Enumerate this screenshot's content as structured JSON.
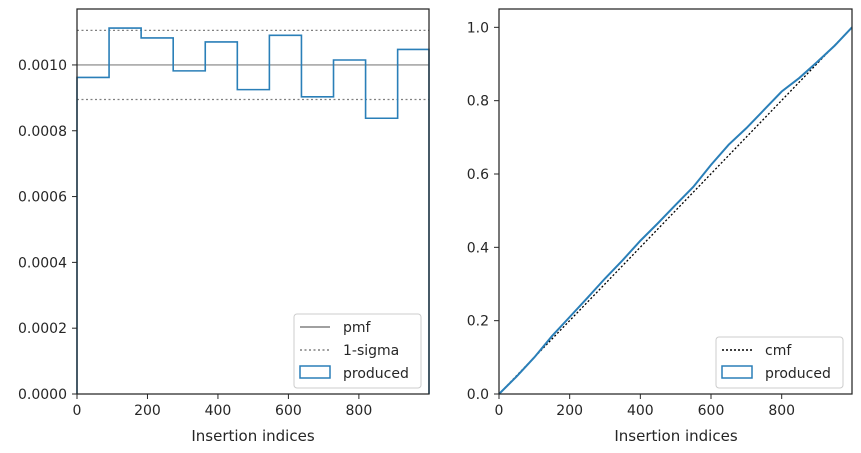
{
  "chart_data": [
    {
      "type": "line",
      "xlabel": "Insertion indices",
      "ylabel": "",
      "xlim": [
        0,
        999
      ],
      "ylim": [
        0,
        0.00117
      ],
      "grid": false,
      "legend_position": "bottom-right",
      "x_ticks": [
        0,
        200,
        400,
        600,
        800
      ],
      "x_tick_labels": [
        "0",
        "200",
        "400",
        "600",
        "800"
      ],
      "y_ticks": [
        0,
        0.0002,
        0.0004,
        0.0006,
        0.0008,
        0.001
      ],
      "y_tick_labels": [
        "0.0000",
        "0.0002",
        "0.0004",
        "0.0006",
        "0.0008",
        "0.0010"
      ],
      "reference_lines": [
        {
          "name": "pmf",
          "y": 0.001,
          "style": "solid",
          "color": "#808080"
        },
        {
          "name": "1-sigma",
          "y": 0.001105,
          "style": "dotted",
          "color": "#808080"
        },
        {
          "name": "1-sigma",
          "y": 0.000895,
          "style": "dotted",
          "color": "#808080"
        }
      ],
      "series": [
        {
          "name": "produced",
          "kind": "step-histogram",
          "color": "#2a7fb8",
          "bin_edges": [
            0,
            91,
            182,
            273,
            364,
            455,
            546,
            637,
            728,
            819,
            910,
            999
          ],
          "values": [
            0.000962,
            0.001112,
            0.001082,
            0.000982,
            0.00107,
            0.000925,
            0.00109,
            0.000903,
            0.001015,
            0.000838,
            0.001047
          ]
        }
      ],
      "legend": [
        {
          "label": "pmf",
          "kind": "solid",
          "color": "#808080"
        },
        {
          "label": "1-sigma",
          "kind": "dotted",
          "color": "#808080"
        },
        {
          "label": "produced",
          "kind": "patch",
          "color": "#2a7fb8"
        }
      ]
    },
    {
      "type": "line",
      "xlabel": "Insertion indices",
      "ylabel": "",
      "xlim": [
        0,
        999
      ],
      "ylim": [
        0,
        1.05
      ],
      "grid": false,
      "legend_position": "bottom-right",
      "x_ticks": [
        0,
        200,
        400,
        600,
        800
      ],
      "x_tick_labels": [
        "0",
        "200",
        "400",
        "600",
        "800"
      ],
      "y_ticks": [
        0,
        0.2,
        0.4,
        0.6,
        0.8,
        1.0
      ],
      "y_tick_labels": [
        "0.0",
        "0.2",
        "0.4",
        "0.6",
        "0.8",
        "1.0"
      ],
      "series": [
        {
          "name": "cmf",
          "style": "dotted",
          "color": "#000000",
          "x": [
            0,
            999
          ],
          "y": [
            0,
            1.0
          ]
        },
        {
          "name": "produced",
          "style": "solid",
          "color": "#2a7fb8",
          "x": [
            0,
            50,
            100,
            150,
            200,
            250,
            300,
            350,
            400,
            450,
            500,
            550,
            600,
            650,
            700,
            750,
            800,
            850,
            900,
            950,
            999
          ],
          "y": [
            0,
            0.048,
            0.1,
            0.158,
            0.21,
            0.262,
            0.315,
            0.365,
            0.418,
            0.466,
            0.516,
            0.565,
            0.625,
            0.68,
            0.725,
            0.775,
            0.825,
            0.862,
            0.905,
            0.95,
            1.0
          ]
        }
      ],
      "legend": [
        {
          "label": "cmf",
          "kind": "dotted",
          "color": "#000000"
        },
        {
          "label": "produced",
          "kind": "patch",
          "color": "#2a7fb8"
        }
      ]
    }
  ]
}
